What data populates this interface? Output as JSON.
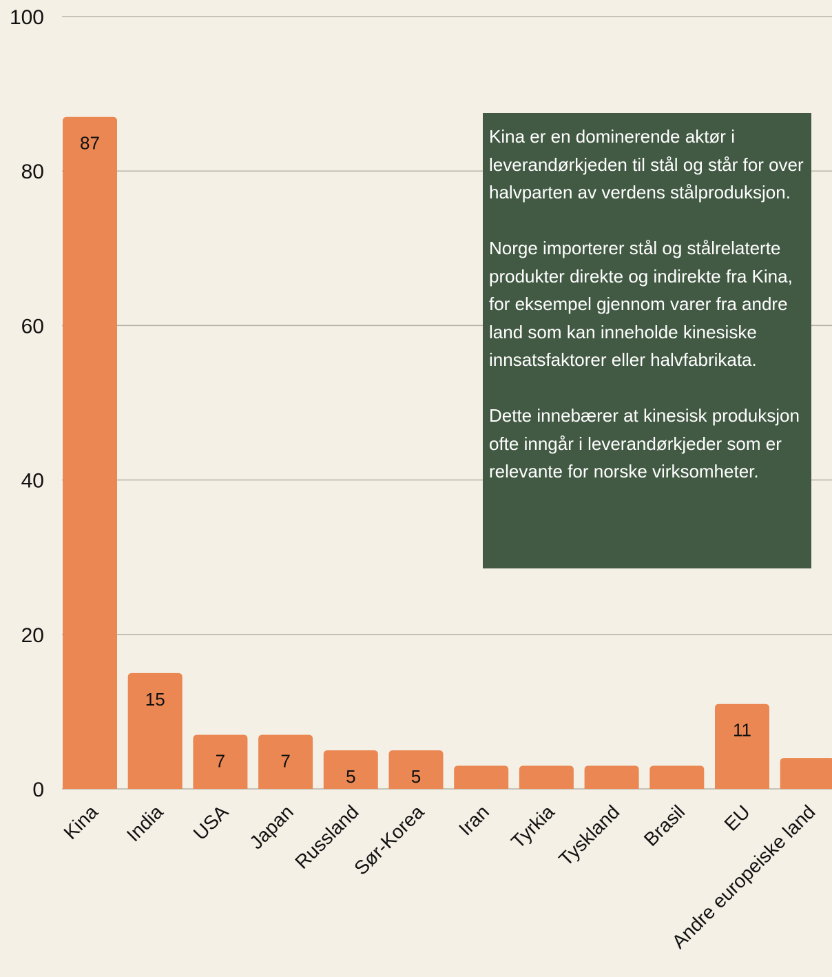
{
  "chart_data": {
    "type": "bar",
    "categories": [
      "Kina",
      "India",
      "USA",
      "Japan",
      "Russland",
      "Sør-Korea",
      "Iran",
      "Tyrkia",
      "Tyskland",
      "Brasil",
      "EU",
      "Andre europeiske land"
    ],
    "values": [
      87,
      15,
      7,
      7,
      5,
      5,
      3,
      3,
      3,
      3,
      11,
      4
    ],
    "data_labels": [
      "87",
      "15",
      "7",
      "7",
      "5",
      "5",
      "",
      "",
      "",
      "",
      "11",
      ""
    ],
    "yticks": [
      0,
      20,
      40,
      60,
      80,
      100
    ],
    "ylim": [
      0,
      100
    ],
    "title": "",
    "xlabel": "",
    "ylabel": "",
    "grid": true,
    "legend": "none",
    "colors": {
      "bar": "#ea8752",
      "background": "#f5f0e6",
      "gridline": "#b8b2a6",
      "annotation_box": "#425a44"
    }
  },
  "annotation": {
    "paragraphs": [
      "Kina er en dominerende aktør i leverandørkjeden til stål og står for over halvparten av verdens stålproduksjon.",
      "Norge importerer stål og stålrelaterte produkter direkte og indirekte fra Kina, for eksempel gjennom varer fra andre land som kan inneholde kinesiske innsatsfaktorer eller halvfabrikata.",
      "Dette innebærer at kinesisk produksjon ofte inngår i leverandørkjeder som er relevante for norske virksomheter."
    ]
  }
}
